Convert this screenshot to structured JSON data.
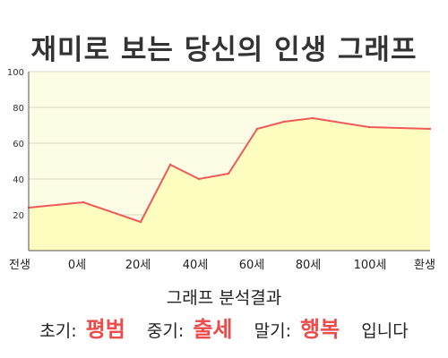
{
  "chart_data": {
    "type": "area",
    "title": "재미로 보는 당신의 인생 그래프",
    "x_tick_labels": [
      "전생",
      "0세",
      "20세",
      "40세",
      "60세",
      "80세",
      "100세",
      "환생"
    ],
    "ylim": [
      0,
      100
    ],
    "y_ticks": [
      20,
      40,
      60,
      80,
      100
    ],
    "grid": true,
    "series": [
      {
        "points": [
          {
            "x": "전생",
            "y": 24
          },
          {
            "x": "0세",
            "y": 27
          },
          {
            "x": "20세",
            "y": 16
          },
          {
            "x": "30세",
            "y": 48
          },
          {
            "x": "40세",
            "y": 40
          },
          {
            "x": "50세",
            "y": 43
          },
          {
            "x": "60세",
            "y": 68
          },
          {
            "x": "70세",
            "y": 72
          },
          {
            "x": "80세",
            "y": 74
          },
          {
            "x": "100세",
            "y": 69
          },
          {
            "x": "환생",
            "y": 68
          }
        ]
      }
    ],
    "colors": {
      "line": "#ee5a5a",
      "fill": "#fdfdc0",
      "plot_bg": "#fdfde6"
    }
  },
  "summary": {
    "heading": "그래프 분석결과",
    "early_label": "초기:",
    "early_value": "평범",
    "mid_label": "중기:",
    "mid_value": "출세",
    "late_label": "말기:",
    "late_value": "행복",
    "suffix": "입니다"
  }
}
